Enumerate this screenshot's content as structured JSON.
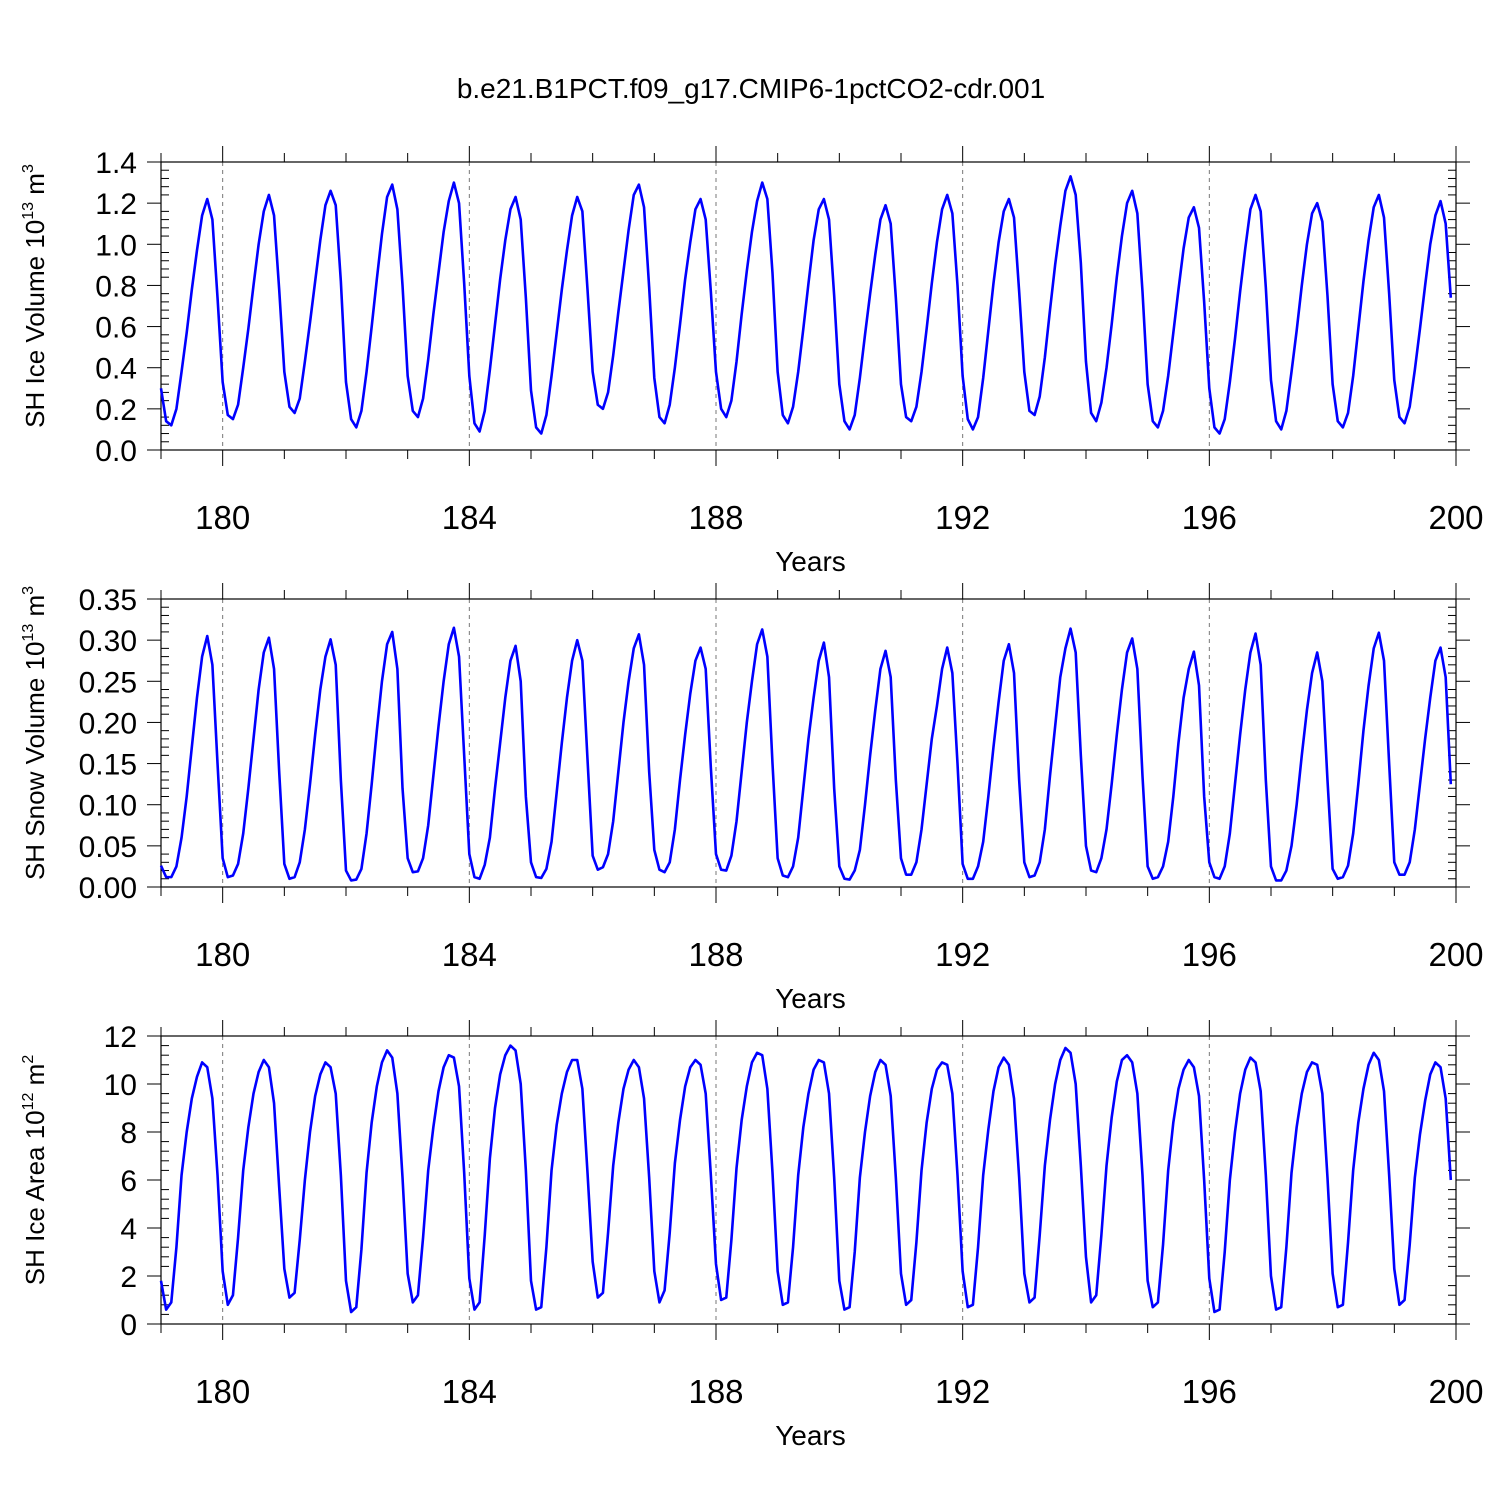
{
  "title": "b.e21.B1PCT.f09_g17.CMIP6-1pctCO2-cdr.001",
  "colors": {
    "series": "#0000ff",
    "axis": "#000000",
    "refline": "#777777"
  },
  "chart_data": [
    {
      "type": "line",
      "title": "",
      "xlabel": "Years",
      "ylabel_text": "SH Ice Volume 10",
      "ylabel_sup1": "13",
      "ylabel_mid": " m",
      "ylabel_sup2": "3",
      "xlim": [
        179,
        200
      ],
      "ylim": [
        0,
        1.4
      ],
      "xticks": [
        180,
        184,
        188,
        192,
        196,
        200
      ],
      "yticks": [
        0,
        0.2,
        0.4,
        0.6,
        0.8,
        1.0,
        1.2,
        1.4
      ],
      "ytick_labels": [
        "0.0",
        "0.2",
        "0.4",
        "0.6",
        "0.8",
        "1.0",
        "1.2",
        "1.4"
      ],
      "reference_lines_x": [
        180,
        184,
        188,
        192,
        196
      ],
      "series": [
        {
          "x_start": 179.0,
          "x_step": 0.08333,
          "values": [
            0.3,
            0.14,
            0.12,
            0.2,
            0.38,
            0.57,
            0.78,
            0.97,
            1.14,
            1.22,
            1.12,
            0.74,
            0.33,
            0.17,
            0.15,
            0.22,
            0.4,
            0.59,
            0.8,
            1.0,
            1.16,
            1.24,
            1.14,
            0.78,
            0.38,
            0.21,
            0.18,
            0.25,
            0.43,
            0.62,
            0.82,
            1.02,
            1.19,
            1.26,
            1.19,
            0.82,
            0.33,
            0.15,
            0.11,
            0.19,
            0.38,
            0.6,
            0.83,
            1.05,
            1.23,
            1.29,
            1.17,
            0.8,
            0.36,
            0.19,
            0.16,
            0.25,
            0.44,
            0.66,
            0.86,
            1.06,
            1.21,
            1.3,
            1.2,
            0.81,
            0.36,
            0.13,
            0.09,
            0.19,
            0.39,
            0.61,
            0.83,
            1.02,
            1.17,
            1.23,
            1.12,
            0.74,
            0.29,
            0.11,
            0.08,
            0.17,
            0.36,
            0.57,
            0.78,
            0.97,
            1.14,
            1.23,
            1.16,
            0.78,
            0.38,
            0.22,
            0.2,
            0.28,
            0.46,
            0.67,
            0.87,
            1.07,
            1.24,
            1.29,
            1.18,
            0.79,
            0.35,
            0.16,
            0.13,
            0.22,
            0.4,
            0.61,
            0.83,
            1.01,
            1.17,
            1.22,
            1.12,
            0.77,
            0.38,
            0.2,
            0.16,
            0.24,
            0.43,
            0.66,
            0.87,
            1.06,
            1.21,
            1.3,
            1.22,
            0.86,
            0.38,
            0.17,
            0.13,
            0.21,
            0.38,
            0.59,
            0.81,
            1.02,
            1.17,
            1.22,
            1.12,
            0.75,
            0.32,
            0.14,
            0.1,
            0.17,
            0.35,
            0.56,
            0.76,
            0.95,
            1.12,
            1.19,
            1.1,
            0.74,
            0.32,
            0.16,
            0.14,
            0.21,
            0.38,
            0.59,
            0.81,
            1.01,
            1.17,
            1.24,
            1.15,
            0.8,
            0.36,
            0.15,
            0.1,
            0.16,
            0.35,
            0.58,
            0.81,
            1.01,
            1.16,
            1.22,
            1.13,
            0.77,
            0.38,
            0.19,
            0.17,
            0.26,
            0.45,
            0.68,
            0.9,
            1.09,
            1.26,
            1.33,
            1.24,
            0.91,
            0.43,
            0.18,
            0.14,
            0.23,
            0.4,
            0.61,
            0.84,
            1.04,
            1.2,
            1.26,
            1.15,
            0.77,
            0.32,
            0.14,
            0.11,
            0.19,
            0.36,
            0.57,
            0.78,
            0.98,
            1.13,
            1.18,
            1.08,
            0.72,
            0.3,
            0.11,
            0.08,
            0.15,
            0.33,
            0.54,
            0.77,
            0.98,
            1.17,
            1.24,
            1.16,
            0.79,
            0.34,
            0.14,
            0.1,
            0.19,
            0.38,
            0.58,
            0.8,
            1.0,
            1.15,
            1.2,
            1.11,
            0.75,
            0.32,
            0.14,
            0.11,
            0.18,
            0.36,
            0.59,
            0.82,
            1.02,
            1.18,
            1.24,
            1.13,
            0.76,
            0.34,
            0.16,
            0.13,
            0.21,
            0.39,
            0.59,
            0.8,
            1.0,
            1.14,
            1.21,
            1.1,
            0.74
          ]
        }
      ]
    },
    {
      "type": "line",
      "title": "",
      "xlabel": "Years",
      "ylabel_text": "SH Snow Volume 10",
      "ylabel_sup1": "13",
      "ylabel_mid": " m",
      "ylabel_sup2": "3",
      "xlim": [
        179,
        200
      ],
      "ylim": [
        0,
        0.35
      ],
      "xticks": [
        180,
        184,
        188,
        192,
        196,
        200
      ],
      "yticks": [
        0,
        0.05,
        0.1,
        0.15,
        0.2,
        0.25,
        0.3,
        0.35
      ],
      "ytick_labels": [
        "0.00",
        "0.05",
        "0.10",
        "0.15",
        "0.20",
        "0.25",
        "0.30",
        "0.35"
      ],
      "reference_lines_x": [
        180,
        184,
        188,
        192,
        196
      ],
      "series": [
        {
          "x_start": 179.0,
          "x_step": 0.08333,
          "values": [
            0.026,
            0.012,
            0.012,
            0.025,
            0.06,
            0.11,
            0.17,
            0.23,
            0.28,
            0.305,
            0.27,
            0.15,
            0.035,
            0.012,
            0.014,
            0.028,
            0.065,
            0.12,
            0.18,
            0.24,
            0.285,
            0.303,
            0.265,
            0.14,
            0.028,
            0.01,
            0.012,
            0.03,
            0.07,
            0.125,
            0.185,
            0.24,
            0.28,
            0.301,
            0.27,
            0.13,
            0.02,
            0.008,
            0.009,
            0.022,
            0.065,
            0.125,
            0.19,
            0.25,
            0.295,
            0.31,
            0.265,
            0.12,
            0.035,
            0.018,
            0.019,
            0.035,
            0.075,
            0.135,
            0.195,
            0.25,
            0.295,
            0.315,
            0.28,
            0.16,
            0.04,
            0.012,
            0.01,
            0.027,
            0.06,
            0.12,
            0.175,
            0.23,
            0.275,
            0.293,
            0.25,
            0.11,
            0.03,
            0.012,
            0.011,
            0.022,
            0.055,
            0.115,
            0.175,
            0.23,
            0.275,
            0.3,
            0.275,
            0.155,
            0.038,
            0.021,
            0.024,
            0.04,
            0.08,
            0.14,
            0.2,
            0.25,
            0.29,
            0.307,
            0.27,
            0.14,
            0.045,
            0.021,
            0.018,
            0.03,
            0.07,
            0.13,
            0.185,
            0.235,
            0.275,
            0.291,
            0.265,
            0.145,
            0.04,
            0.021,
            0.02,
            0.038,
            0.08,
            0.14,
            0.2,
            0.25,
            0.295,
            0.313,
            0.28,
            0.15,
            0.035,
            0.014,
            0.012,
            0.025,
            0.06,
            0.12,
            0.18,
            0.23,
            0.275,
            0.297,
            0.255,
            0.12,
            0.025,
            0.01,
            0.009,
            0.02,
            0.045,
            0.1,
            0.16,
            0.215,
            0.265,
            0.287,
            0.255,
            0.13,
            0.035,
            0.015,
            0.015,
            0.03,
            0.07,
            0.125,
            0.18,
            0.22,
            0.265,
            0.291,
            0.26,
            0.15,
            0.028,
            0.01,
            0.01,
            0.025,
            0.055,
            0.11,
            0.17,
            0.225,
            0.275,
            0.295,
            0.26,
            0.13,
            0.03,
            0.012,
            0.014,
            0.03,
            0.07,
            0.135,
            0.195,
            0.255,
            0.29,
            0.314,
            0.285,
            0.16,
            0.05,
            0.02,
            0.018,
            0.035,
            0.07,
            0.125,
            0.185,
            0.24,
            0.285,
            0.302,
            0.265,
            0.135,
            0.025,
            0.01,
            0.012,
            0.025,
            0.055,
            0.11,
            0.175,
            0.23,
            0.265,
            0.286,
            0.245,
            0.11,
            0.03,
            0.012,
            0.01,
            0.025,
            0.065,
            0.125,
            0.185,
            0.24,
            0.285,
            0.308,
            0.27,
            0.13,
            0.025,
            0.008,
            0.008,
            0.02,
            0.05,
            0.1,
            0.16,
            0.215,
            0.26,
            0.285,
            0.25,
            0.13,
            0.022,
            0.01,
            0.012,
            0.026,
            0.065,
            0.125,
            0.19,
            0.245,
            0.29,
            0.309,
            0.275,
            0.15,
            0.03,
            0.015,
            0.015,
            0.03,
            0.07,
            0.125,
            0.18,
            0.23,
            0.275,
            0.291,
            0.255,
            0.125
          ]
        }
      ]
    },
    {
      "type": "line",
      "title": "",
      "xlabel": "Years",
      "ylabel_text": "SH Ice Area 10",
      "ylabel_sup1": "12",
      "ylabel_mid": " m",
      "ylabel_sup2": "2",
      "xlim": [
        179,
        200
      ],
      "ylim": [
        0,
        12
      ],
      "xticks": [
        180,
        184,
        188,
        192,
        196,
        200
      ],
      "yticks": [
        0,
        2,
        4,
        6,
        8,
        10,
        12
      ],
      "ytick_labels": [
        "0",
        "2",
        "4",
        "6",
        "8",
        "10",
        "12"
      ],
      "reference_lines_x": [
        180,
        184,
        188,
        192,
        196
      ],
      "series": [
        {
          "x_start": 179.0,
          "x_step": 0.08333,
          "values": [
            1.8,
            0.6,
            0.9,
            3.2,
            6.2,
            8.0,
            9.4,
            10.3,
            10.9,
            10.7,
            9.4,
            6.2,
            2.2,
            0.8,
            1.2,
            3.6,
            6.4,
            8.2,
            9.6,
            10.5,
            11.0,
            10.7,
            9.2,
            5.7,
            2.3,
            1.1,
            1.3,
            3.5,
            6.0,
            8.0,
            9.5,
            10.4,
            10.9,
            10.7,
            9.6,
            6.2,
            1.8,
            0.5,
            0.7,
            3.1,
            6.3,
            8.4,
            9.9,
            10.9,
            11.4,
            11.1,
            9.6,
            6.1,
            2.1,
            0.9,
            1.2,
            3.6,
            6.4,
            8.2,
            9.7,
            10.7,
            11.2,
            11.1,
            9.9,
            6.3,
            1.9,
            0.6,
            0.9,
            3.7,
            6.9,
            9.0,
            10.4,
            11.2,
            11.6,
            11.4,
            10.0,
            6.4,
            1.8,
            0.6,
            0.7,
            3.2,
            6.4,
            8.3,
            9.6,
            10.5,
            11.0,
            11.0,
            9.8,
            6.3,
            2.6,
            1.1,
            1.3,
            3.8,
            6.6,
            8.4,
            9.8,
            10.6,
            11.0,
            10.7,
            9.4,
            6.1,
            2.2,
            0.9,
            1.4,
            3.8,
            6.7,
            8.5,
            9.9,
            10.7,
            11.0,
            10.8,
            9.6,
            6.2,
            2.5,
            1.0,
            1.1,
            3.5,
            6.5,
            8.5,
            9.9,
            10.9,
            11.3,
            11.2,
            9.8,
            6.3,
            2.2,
            0.8,
            0.9,
            3.2,
            6.2,
            8.2,
            9.6,
            10.6,
            11.0,
            10.9,
            9.6,
            6.1,
            1.8,
            0.6,
            0.7,
            3.0,
            6.1,
            8.0,
            9.5,
            10.5,
            11.0,
            10.8,
            9.5,
            6.1,
            2.1,
            0.8,
            1.0,
            3.4,
            6.4,
            8.4,
            9.8,
            10.6,
            10.9,
            10.8,
            9.6,
            6.2,
            2.2,
            0.7,
            0.8,
            3.2,
            6.2,
            8.1,
            9.7,
            10.7,
            11.1,
            10.8,
            9.4,
            6.1,
            2.1,
            0.9,
            1.1,
            3.7,
            6.6,
            8.5,
            10.0,
            11.0,
            11.5,
            11.3,
            10.0,
            6.6,
            2.8,
            0.9,
            1.2,
            3.7,
            6.6,
            8.6,
            10.1,
            11.0,
            11.2,
            10.9,
            9.6,
            6.2,
            1.8,
            0.7,
            0.9,
            3.3,
            6.4,
            8.4,
            9.8,
            10.6,
            11.0,
            10.7,
            9.5,
            6.0,
            1.9,
            0.5,
            0.6,
            3.0,
            6.0,
            8.0,
            9.6,
            10.6,
            11.1,
            10.9,
            9.7,
            6.2,
            2.0,
            0.6,
            0.7,
            3.2,
            6.3,
            8.2,
            9.6,
            10.5,
            10.9,
            10.8,
            9.6,
            6.1,
            2.1,
            0.7,
            0.8,
            3.4,
            6.4,
            8.4,
            9.8,
            10.8,
            11.3,
            11.0,
            9.7,
            6.2,
            2.3,
            0.8,
            1.0,
            3.3,
            6.1,
            7.9,
            9.3,
            10.4,
            10.9,
            10.7,
            9.4,
            6.0
          ]
        }
      ]
    }
  ]
}
